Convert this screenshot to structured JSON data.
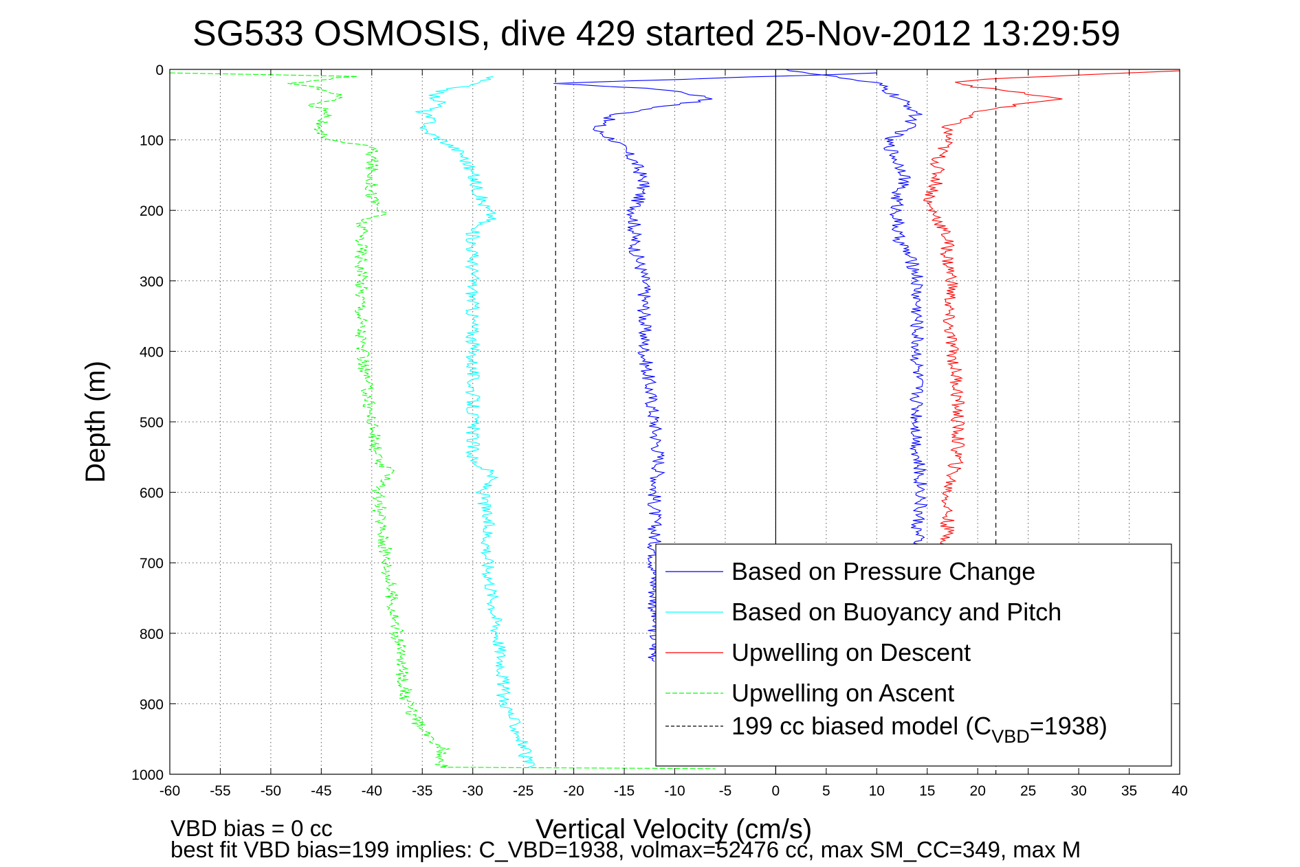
{
  "chart_data": {
    "type": "line",
    "title": "SG533 OSMOSIS, dive 429 started 25-Nov-2012 13:29:59",
    "xlabel": "Vertical Velocity (cm/s)",
    "ylabel": "Depth (m)",
    "xlim": [
      -60,
      40
    ],
    "ylim": [
      0,
      1000
    ],
    "y_reversed": true,
    "grid": true,
    "x_ticks": [
      -60,
      -55,
      -50,
      -45,
      -40,
      -35,
      -30,
      -25,
      -20,
      -15,
      -10,
      -5,
      0,
      5,
      10,
      15,
      20,
      25,
      30,
      35,
      40
    ],
    "y_ticks": [
      0,
      100,
      200,
      300,
      400,
      500,
      600,
      700,
      800,
      900,
      1000
    ],
    "legend_position": "bottom-right",
    "series": [
      {
        "name": "Based on Pressure Change",
        "color": "#0000ff",
        "style": "solid",
        "points": [
          [
            10,
            5
          ],
          [
            -22,
            20
          ],
          [
            -15,
            25
          ],
          [
            -10,
            30
          ],
          [
            -6,
            42
          ],
          [
            -11,
            52
          ],
          [
            -16,
            65
          ],
          [
            -18,
            85
          ],
          [
            -16,
            100
          ],
          [
            -14,
            130
          ],
          [
            -13,
            160
          ],
          [
            -14,
            200
          ],
          [
            -14,
            250
          ],
          [
            -13,
            300
          ],
          [
            -13,
            350
          ],
          [
            -13,
            400
          ],
          [
            -12.5,
            450
          ],
          [
            -12,
            500
          ],
          [
            -11.5,
            560
          ],
          [
            -12,
            600
          ],
          [
            -12,
            700
          ],
          [
            -12,
            750
          ],
          [
            -12,
            800
          ],
          [
            -12,
            840
          ]
        ]
      },
      {
        "name": "Based on Pressure Change",
        "color": "#0000ff",
        "style": "solid",
        "points": [
          [
            1,
            0
          ],
          [
            10,
            20
          ],
          [
            12,
            40
          ],
          [
            14,
            60
          ],
          [
            13,
            85
          ],
          [
            11,
            100
          ],
          [
            12,
            130
          ],
          [
            13,
            150
          ],
          [
            12,
            175
          ],
          [
            12,
            200
          ],
          [
            12,
            235
          ],
          [
            13,
            260
          ],
          [
            14,
            290
          ],
          [
            14,
            330
          ],
          [
            14,
            400
          ],
          [
            14,
            450
          ],
          [
            14,
            500
          ],
          [
            14,
            550
          ],
          [
            14.5,
            600
          ],
          [
            14,
            650
          ],
          [
            14,
            700
          ]
        ]
      },
      {
        "name": "Based on Buoyancy and Pitch",
        "color": "#00ffff",
        "style": "solid",
        "points": [
          [
            -28,
            10
          ],
          [
            -30,
            20
          ],
          [
            -34,
            35
          ],
          [
            -33,
            50
          ],
          [
            -35,
            60
          ],
          [
            -34,
            75
          ],
          [
            -35,
            85
          ],
          [
            -33,
            100
          ],
          [
            -31,
            120
          ],
          [
            -30,
            150
          ],
          [
            -29,
            190
          ],
          [
            -28,
            210
          ],
          [
            -30,
            225
          ],
          [
            -30,
            300
          ],
          [
            -30,
            400
          ],
          [
            -30,
            500
          ],
          [
            -30,
            555
          ],
          [
            -28,
            575
          ],
          [
            -29,
            600
          ],
          [
            -28.5,
            650
          ],
          [
            -28.5,
            700
          ],
          [
            -28,
            750
          ],
          [
            -27.5,
            800
          ],
          [
            -27,
            850
          ],
          [
            -27,
            890
          ],
          [
            -25.5,
            940
          ],
          [
            -25,
            960
          ],
          [
            -24.5,
            990
          ]
        ]
      },
      {
        "name": "Upwelling on Descent",
        "color": "#ff0000",
        "style": "solid",
        "points": [
          [
            40,
            2
          ],
          [
            23,
            12
          ],
          [
            18,
            18
          ],
          [
            20,
            25
          ],
          [
            25,
            35
          ],
          [
            28,
            42
          ],
          [
            24,
            50
          ],
          [
            20,
            60
          ],
          [
            17,
            80
          ],
          [
            17,
            100
          ],
          [
            16,
            130
          ],
          [
            16,
            160
          ],
          [
            15,
            190
          ],
          [
            16,
            210
          ],
          [
            17,
            240
          ],
          [
            17,
            270
          ],
          [
            17.5,
            300
          ],
          [
            17,
            350
          ],
          [
            17.5,
            400
          ],
          [
            18,
            450
          ],
          [
            18,
            500
          ],
          [
            18,
            550
          ],
          [
            17,
            600
          ],
          [
            17,
            650
          ],
          [
            17,
            680
          ]
        ]
      },
      {
        "name": "Upwelling on Ascent",
        "color": "#00ff00",
        "style": "dashed",
        "points": [
          [
            -60,
            5
          ],
          [
            -42,
            10
          ],
          [
            -48,
            20
          ],
          [
            -44,
            30
          ],
          [
            -43,
            40
          ],
          [
            -46,
            50
          ],
          [
            -44,
            60
          ],
          [
            -45,
            75
          ],
          [
            -46,
            85
          ],
          [
            -44,
            100
          ],
          [
            -40,
            110
          ],
          [
            -40,
            150
          ],
          [
            -40,
            180
          ],
          [
            -39,
            205
          ],
          [
            -41,
            215
          ],
          [
            -41,
            300
          ],
          [
            -41,
            400
          ],
          [
            -40.5,
            450
          ],
          [
            -40,
            500
          ],
          [
            -39.5,
            555
          ],
          [
            -38,
            575
          ],
          [
            -39.5,
            600
          ],
          [
            -39,
            650
          ],
          [
            -38.5,
            700
          ],
          [
            -38,
            750
          ],
          [
            -37.5,
            800
          ],
          [
            -37,
            850
          ],
          [
            -36.5,
            900
          ],
          [
            -35,
            940
          ],
          [
            -33,
            960
          ],
          [
            -33,
            990
          ],
          [
            -6,
            992
          ]
        ]
      },
      {
        "name": "199 cc biased model (C_VBD=1938)",
        "color": "#000000",
        "style": "dashed",
        "points": [
          [
            -21.8,
            0
          ],
          [
            -21.8,
            1000
          ]
        ]
      },
      {
        "name": "199 cc biased model (C_VBD=1938)",
        "color": "#000000",
        "style": "dashed",
        "points": [
          [
            21.8,
            0
          ],
          [
            21.8,
            1000
          ]
        ]
      },
      {
        "name": "",
        "color": "#000000",
        "style": "solid",
        "points": [
          [
            0,
            0
          ],
          [
            0,
            1000
          ]
        ]
      }
    ],
    "legend": [
      {
        "label": "Based on Pressure Change",
        "color": "#0000ff",
        "style": "solid"
      },
      {
        "label": "Based on Buoyancy and Pitch",
        "color": "#00ffff",
        "style": "solid"
      },
      {
        "label": "Upwelling on Descent",
        "color": "#ff0000",
        "style": "solid"
      },
      {
        "label": "Upwelling on Ascent",
        "color": "#00ff00",
        "style": "dashed"
      },
      {
        "label_main": "199 cc biased model (C",
        "label_sub": "VBD",
        "label_tail": "=1938)",
        "color": "#000000",
        "style": "dashed"
      }
    ]
  },
  "footer": {
    "line1": "VBD bias = 0 cc",
    "line2": "best fit VBD bias=199 implies: C_VBD=1938, volmax=52476 cc, max SM_CC=349, max M"
  }
}
